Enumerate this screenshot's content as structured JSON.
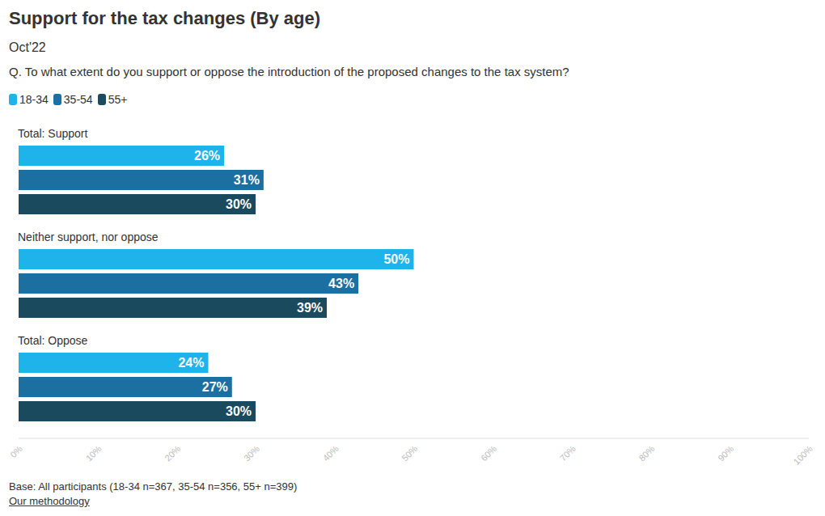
{
  "chart_data": {
    "type": "bar",
    "title": "Support for the tax changes (By age)",
    "subtitle": "Oct'22",
    "question": "Q. To what extent do you support or oppose the introduction of the proposed changes to the tax system?",
    "source": "Base: All participants (18-34 n=367, 35-54 n=356, 55+ n=399)",
    "link": "Our methodology",
    "orientation": "horizontal",
    "data_labels": true,
    "grid": false,
    "legend": "top-left",
    "categories": [
      "Total: Support",
      "Neither support, nor oppose",
      "Total: Oppose"
    ],
    "series": [
      {
        "name": "18-34",
        "color": "#1eb3ea",
        "values": [
          26,
          50,
          24
        ],
        "value_labels": [
          "26%",
          "50%",
          "24%"
        ]
      },
      {
        "name": "35-54",
        "color": "#1b6fa1",
        "values": [
          31,
          43,
          27
        ],
        "value_labels": [
          "31%",
          "43%",
          "27%"
        ]
      },
      {
        "name": "55+",
        "color": "#1a4a5e",
        "values": [
          30,
          39,
          30
        ],
        "value_labels": [
          "30%",
          "39%",
          "30%"
        ]
      }
    ],
    "xlim": [
      0,
      100
    ],
    "xticks": [
      {
        "value": 0,
        "label": "0%"
      },
      {
        "value": 10,
        "label": "10%"
      },
      {
        "value": 20,
        "label": "20%"
      },
      {
        "value": 30,
        "label": "30%"
      },
      {
        "value": 40,
        "label": "40%"
      },
      {
        "value": 50,
        "label": "50%"
      },
      {
        "value": 60,
        "label": "60%"
      },
      {
        "value": 70,
        "label": "70%"
      },
      {
        "value": 80,
        "label": "80%"
      },
      {
        "value": 90,
        "label": "90%"
      },
      {
        "value": 100,
        "label": "100%"
      }
    ]
  }
}
